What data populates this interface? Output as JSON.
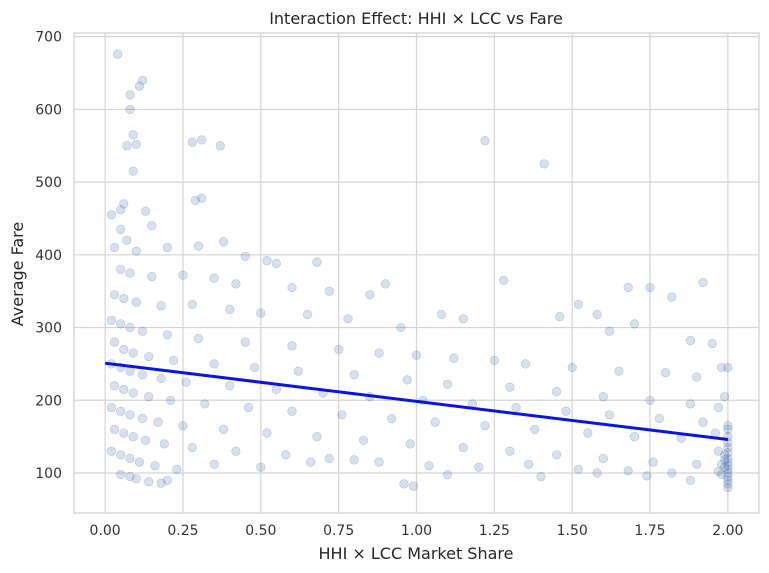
{
  "chart_data": {
    "type": "scatter",
    "title": "Interaction Effect: HHI × LCC vs Fare",
    "xlabel": "HHI × LCC Market Share",
    "ylabel": "Average Fare",
    "xlim": [
      -0.1,
      2.1
    ],
    "ylim": [
      45,
      705
    ],
    "x_ticks": [
      0.0,
      0.25,
      0.5,
      0.75,
      1.0,
      1.25,
      1.5,
      1.75,
      2.0
    ],
    "x_tick_labels": [
      "0.00",
      "0.25",
      "0.50",
      "0.75",
      "1.00",
      "1.25",
      "1.50",
      "1.75",
      "2.00"
    ],
    "y_ticks": [
      100,
      200,
      300,
      400,
      500,
      600,
      700
    ],
    "y_tick_labels": [
      "100",
      "200",
      "300",
      "400",
      "500",
      "600",
      "700"
    ],
    "grid": true,
    "legend": "none",
    "colors": {
      "points": "#4c72b0",
      "fit_line": "#0a14e6",
      "grid": "#d4d4d4"
    },
    "fit_line": {
      "x": [
        0.0,
        2.0
      ],
      "y": [
        251,
        146
      ]
    },
    "series": [
      {
        "points": [
          [
            0.04,
            676
          ],
          [
            0.08,
            620
          ],
          [
            0.08,
            600
          ],
          [
            0.12,
            640
          ],
          [
            0.11,
            632
          ],
          [
            0.09,
            565
          ],
          [
            0.07,
            550
          ],
          [
            0.1,
            552
          ],
          [
            0.09,
            515
          ],
          [
            0.28,
            555
          ],
          [
            0.31,
            558
          ],
          [
            0.37,
            550
          ],
          [
            0.29,
            475
          ],
          [
            0.31,
            478
          ],
          [
            1.22,
            557
          ],
          [
            1.41,
            525
          ],
          [
            0.02,
            455
          ],
          [
            0.06,
            470
          ],
          [
            0.05,
            462
          ],
          [
            0.13,
            460
          ],
          [
            0.15,
            440
          ],
          [
            0.05,
            435
          ],
          [
            0.03,
            410
          ],
          [
            0.07,
            420
          ],
          [
            0.1,
            405
          ],
          [
            0.2,
            410
          ],
          [
            0.3,
            412
          ],
          [
            0.38,
            418
          ],
          [
            0.45,
            398
          ],
          [
            0.52,
            392
          ],
          [
            0.55,
            388
          ],
          [
            0.68,
            390
          ],
          [
            0.05,
            380
          ],
          [
            0.08,
            375
          ],
          [
            0.15,
            370
          ],
          [
            0.25,
            372
          ],
          [
            0.35,
            368
          ],
          [
            0.42,
            360
          ],
          [
            0.6,
            355
          ],
          [
            0.72,
            350
          ],
          [
            0.85,
            345
          ],
          [
            0.9,
            360
          ],
          [
            1.28,
            365
          ],
          [
            1.52,
            332
          ],
          [
            1.68,
            355
          ],
          [
            1.75,
            355
          ],
          [
            1.82,
            342
          ],
          [
            1.92,
            362
          ],
          [
            0.03,
            345
          ],
          [
            0.06,
            340
          ],
          [
            0.1,
            335
          ],
          [
            0.18,
            330
          ],
          [
            0.28,
            332
          ],
          [
            0.4,
            325
          ],
          [
            0.5,
            320
          ],
          [
            0.65,
            318
          ],
          [
            0.78,
            312
          ],
          [
            0.95,
            300
          ],
          [
            1.08,
            318
          ],
          [
            1.15,
            312
          ],
          [
            1.46,
            315
          ],
          [
            1.58,
            318
          ],
          [
            1.62,
            295
          ],
          [
            1.7,
            305
          ],
          [
            1.88,
            282
          ],
          [
            1.95,
            278
          ],
          [
            0.02,
            310
          ],
          [
            0.05,
            305
          ],
          [
            0.08,
            300
          ],
          [
            0.12,
            295
          ],
          [
            0.2,
            290
          ],
          [
            0.3,
            285
          ],
          [
            0.45,
            280
          ],
          [
            0.6,
            275
          ],
          [
            0.75,
            270
          ],
          [
            0.88,
            265
          ],
          [
            1.0,
            262
          ],
          [
            1.12,
            258
          ],
          [
            1.25,
            255
          ],
          [
            1.35,
            250
          ],
          [
            1.5,
            245
          ],
          [
            1.65,
            240
          ],
          [
            1.8,
            238
          ],
          [
            1.9,
            232
          ],
          [
            1.98,
            245
          ],
          [
            0.03,
            280
          ],
          [
            0.06,
            270
          ],
          [
            0.09,
            265
          ],
          [
            0.14,
            260
          ],
          [
            0.22,
            255
          ],
          [
            0.35,
            250
          ],
          [
            0.48,
            245
          ],
          [
            0.62,
            240
          ],
          [
            0.8,
            235
          ],
          [
            0.97,
            228
          ],
          [
            1.1,
            222
          ],
          [
            1.3,
            218
          ],
          [
            1.45,
            212
          ],
          [
            1.6,
            205
          ],
          [
            1.75,
            200
          ],
          [
            1.88,
            195
          ],
          [
            1.97,
            190
          ],
          [
            0.02,
            250
          ],
          [
            0.05,
            245
          ],
          [
            0.08,
            240
          ],
          [
            0.12,
            235
          ],
          [
            0.18,
            230
          ],
          [
            0.26,
            225
          ],
          [
            0.4,
            220
          ],
          [
            0.55,
            215
          ],
          [
            0.7,
            210
          ],
          [
            0.85,
            205
          ],
          [
            1.02,
            200
          ],
          [
            1.18,
            195
          ],
          [
            1.32,
            190
          ],
          [
            1.48,
            185
          ],
          [
            1.62,
            180
          ],
          [
            1.78,
            175
          ],
          [
            1.92,
            170
          ],
          [
            0.03,
            220
          ],
          [
            0.06,
            215
          ],
          [
            0.09,
            210
          ],
          [
            0.14,
            205
          ],
          [
            0.21,
            200
          ],
          [
            0.32,
            195
          ],
          [
            0.46,
            190
          ],
          [
            0.6,
            185
          ],
          [
            0.76,
            180
          ],
          [
            0.92,
            175
          ],
          [
            1.06,
            170
          ],
          [
            1.22,
            165
          ],
          [
            1.38,
            160
          ],
          [
            1.55,
            155
          ],
          [
            1.7,
            150
          ],
          [
            1.85,
            148
          ],
          [
            1.96,
            155
          ],
          [
            0.02,
            190
          ],
          [
            0.05,
            185
          ],
          [
            0.08,
            180
          ],
          [
            0.12,
            175
          ],
          [
            0.17,
            170
          ],
          [
            0.25,
            165
          ],
          [
            0.38,
            160
          ],
          [
            0.52,
            155
          ],
          [
            0.68,
            150
          ],
          [
            0.83,
            145
          ],
          [
            0.98,
            140
          ],
          [
            1.15,
            135
          ],
          [
            1.3,
            130
          ],
          [
            1.45,
            125
          ],
          [
            1.6,
            120
          ],
          [
            1.76,
            115
          ],
          [
            1.9,
            112
          ],
          [
            0.03,
            160
          ],
          [
            0.06,
            155
          ],
          [
            0.09,
            150
          ],
          [
            0.13,
            145
          ],
          [
            0.19,
            140
          ],
          [
            0.28,
            135
          ],
          [
            0.42,
            130
          ],
          [
            0.58,
            125
          ],
          [
            0.72,
            120
          ],
          [
            0.88,
            115
          ],
          [
            1.04,
            110
          ],
          [
            1.2,
            108
          ],
          [
            1.36,
            112
          ],
          [
            1.52,
            105
          ],
          [
            1.68,
            103
          ],
          [
            1.82,
            100
          ],
          [
            0.02,
            130
          ],
          [
            0.05,
            125
          ],
          [
            0.08,
            120
          ],
          [
            0.11,
            115
          ],
          [
            0.16,
            110
          ],
          [
            0.23,
            105
          ],
          [
            0.35,
            112
          ],
          [
            0.5,
            108
          ],
          [
            0.66,
            115
          ],
          [
            0.8,
            118
          ],
          [
            0.96,
            85
          ],
          [
            0.99,
            82
          ],
          [
            1.1,
            98
          ],
          [
            1.4,
            95
          ],
          [
            1.58,
            100
          ],
          [
            1.74,
            96
          ],
          [
            1.88,
            90
          ],
          [
            0.05,
            98
          ],
          [
            0.08,
            95
          ],
          [
            0.1,
            92
          ],
          [
            0.14,
            88
          ],
          [
            0.18,
            86
          ],
          [
            0.2,
            90
          ],
          [
            2.0,
            150
          ],
          [
            2.0,
            142
          ],
          [
            2.0,
            135
          ],
          [
            2.0,
            128
          ],
          [
            2.0,
            120
          ],
          [
            2.0,
            115
          ],
          [
            2.0,
            110
          ],
          [
            2.0,
            105
          ],
          [
            2.0,
            100
          ],
          [
            2.0,
            95
          ],
          [
            2.0,
            90
          ],
          [
            2.0,
            85
          ],
          [
            2.0,
            80
          ],
          [
            1.99,
            125
          ],
          [
            1.99,
            118
          ],
          [
            1.99,
            108
          ],
          [
            1.98,
            112
          ],
          [
            1.98,
            98
          ],
          [
            1.97,
            130
          ],
          [
            1.97,
            102
          ],
          [
            2.0,
            160
          ],
          [
            2.0,
            165
          ],
          [
            2.0,
            245
          ],
          [
            1.99,
            205
          ]
        ]
      }
    ]
  }
}
